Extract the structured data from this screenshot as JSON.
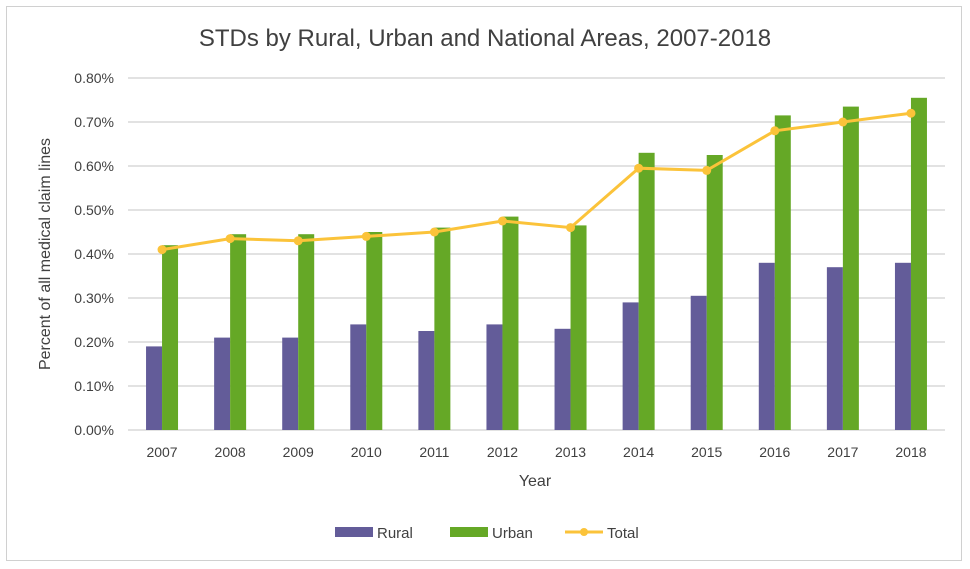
{
  "chart_data": {
    "type": "bar",
    "title": "STDs by Rural, Urban and National Areas, 2007-2018",
    "xlabel": "Year",
    "ylabel": "Percent of all medical claim lines",
    "categories": [
      "2007",
      "2008",
      "2009",
      "2010",
      "2011",
      "2012",
      "2013",
      "2014",
      "2015",
      "2016",
      "2017",
      "2018"
    ],
    "ylim": [
      0,
      0.8
    ],
    "yticks": [
      "0.00%",
      "0.10%",
      "0.20%",
      "0.30%",
      "0.40%",
      "0.50%",
      "0.60%",
      "0.70%",
      "0.80%"
    ],
    "grid": true,
    "legend_position": "bottom",
    "series": [
      {
        "name": "Rural",
        "type": "bar",
        "color": "#635c99",
        "values": [
          0.19,
          0.21,
          0.21,
          0.24,
          0.225,
          0.24,
          0.23,
          0.29,
          0.305,
          0.38,
          0.37,
          0.38
        ]
      },
      {
        "name": "Urban",
        "type": "bar",
        "color": "#65a826",
        "values": [
          0.42,
          0.445,
          0.445,
          0.45,
          0.46,
          0.485,
          0.465,
          0.63,
          0.625,
          0.715,
          0.735,
          0.755
        ]
      },
      {
        "name": "Total",
        "type": "line",
        "color": "#fbc33a",
        "values": [
          0.41,
          0.435,
          0.43,
          0.44,
          0.45,
          0.475,
          0.46,
          0.595,
          0.59,
          0.68,
          0.7,
          0.72
        ]
      }
    ]
  }
}
